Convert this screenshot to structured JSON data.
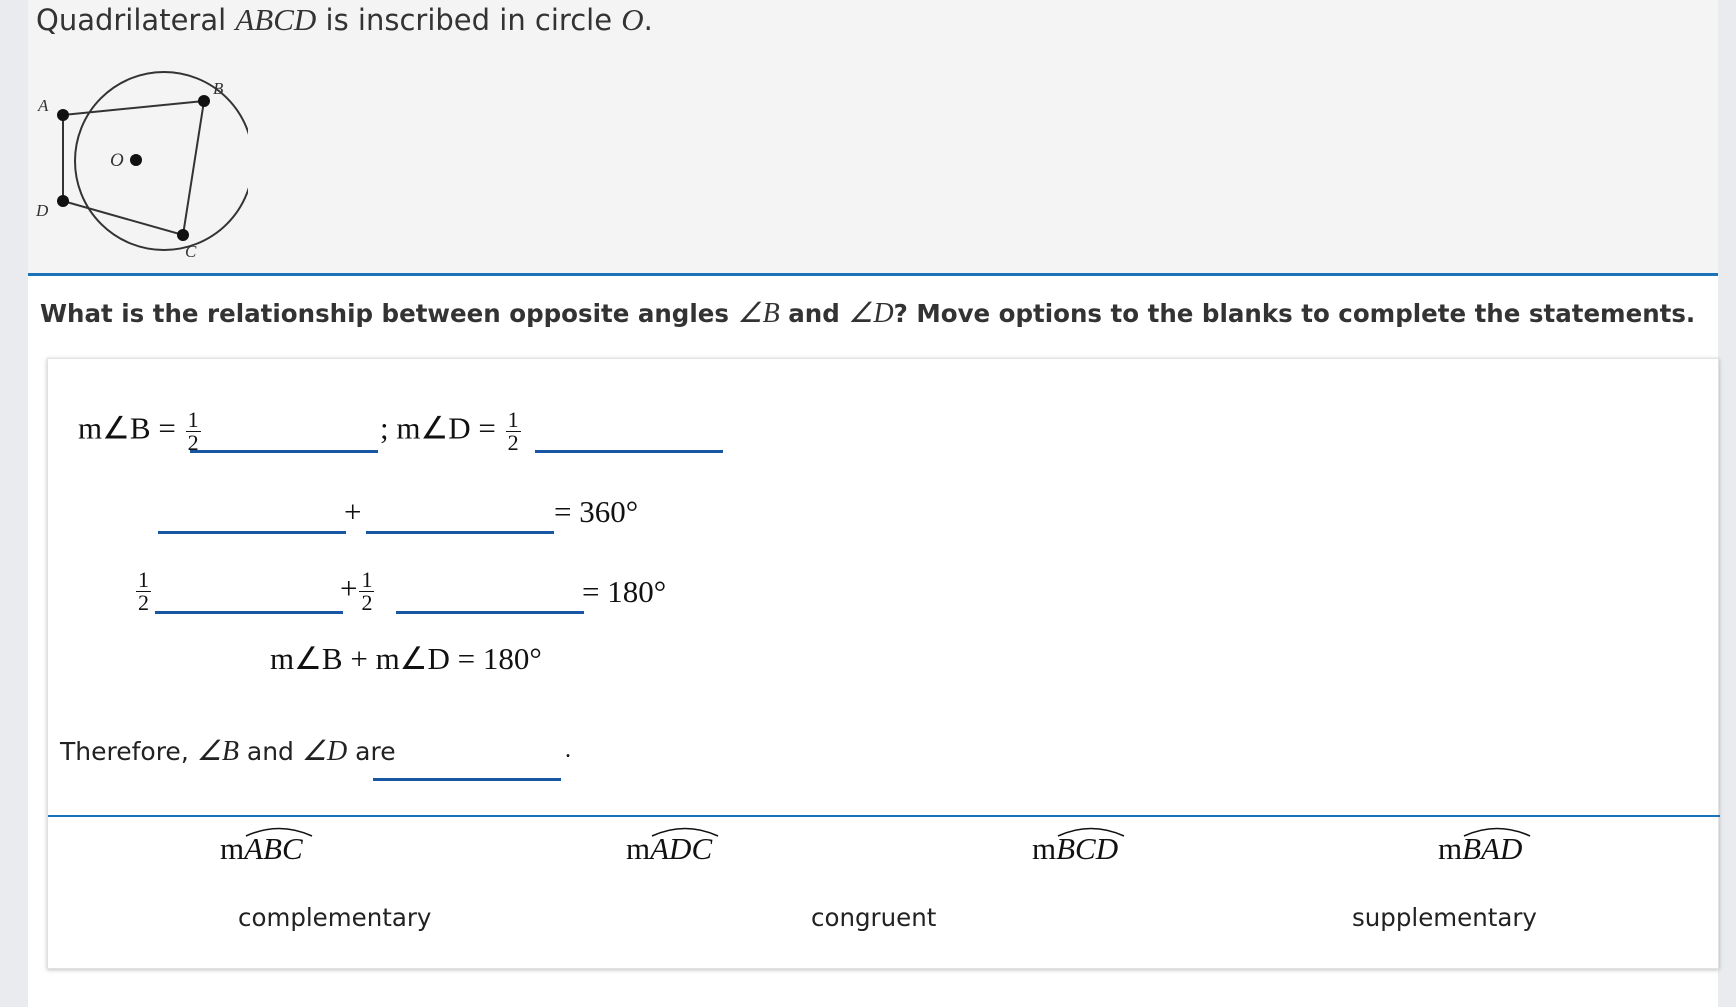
{
  "stem": {
    "prefix": "Quadrilateral ",
    "shape": "ABCD",
    "middle": " is inscribed in circle ",
    "circle": "O",
    "suffix": "."
  },
  "figure": {
    "labels": {
      "A": "A",
      "B": "B",
      "C": "C",
      "D": "D",
      "O": "O"
    }
  },
  "question": {
    "part1": "What is the relationship between opposite angles ",
    "angle_b": "∠B",
    "and": " and ",
    "angle_d": "∠D",
    "part2": "? Move options to the blanks to complete the statements."
  },
  "statements": {
    "line1_lead": "m∠B = ",
    "line1_mid": "; m∠D = ",
    "half_num": "1",
    "half_den": "2",
    "plus": "+",
    "eq360": "= 360°",
    "eq180": "= 180°",
    "sum_line": "m∠B + m∠D = 180°",
    "therefore_lead": "Therefore, ",
    "therefore_b": "∠B",
    "therefore_and": " and ",
    "therefore_d": "∠D",
    "therefore_are": " are",
    "therefore_end": "."
  },
  "options": {
    "arcs": [
      {
        "prefix": "m",
        "arc": "ABC"
      },
      {
        "prefix": "m",
        "arc": "ADC"
      },
      {
        "prefix": "m",
        "arc": "BCD"
      },
      {
        "prefix": "m",
        "arc": "BAD"
      }
    ],
    "words": [
      "complementary",
      "congruent",
      "supplementary"
    ]
  },
  "colors": {
    "accent": "#1a73b8",
    "blank": "#1656a2"
  }
}
